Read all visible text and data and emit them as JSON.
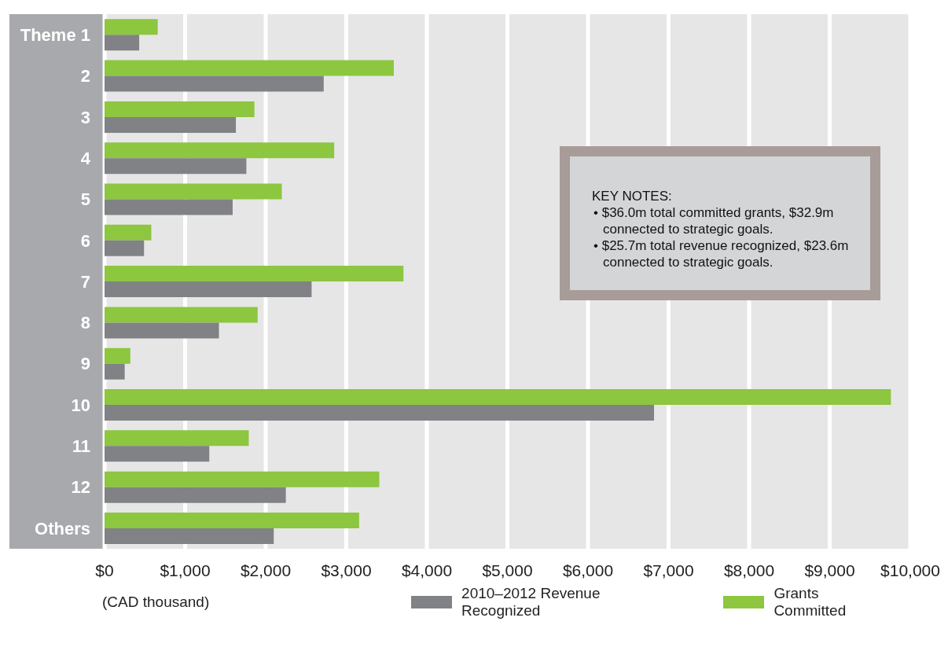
{
  "chart_data": {
    "type": "bar",
    "orientation": "horizontal",
    "xlabel": "(CAD thousand)",
    "categories": [
      "Theme 1",
      "2",
      "3",
      "4",
      "5",
      "6",
      "7",
      "8",
      "9",
      "10",
      "11",
      "12",
      "Others"
    ],
    "series": [
      {
        "name": "Grants Committed",
        "color": "#8dc63f",
        "values": [
          660,
          3590,
          1860,
          2850,
          2200,
          580,
          3710,
          1900,
          320,
          9760,
          1790,
          3410,
          3160
        ]
      },
      {
        "name": "2010–2012 Revenue Recognized",
        "color": "#808285",
        "values": [
          430,
          2720,
          1630,
          1760,
          1590,
          490,
          2570,
          1420,
          250,
          6820,
          1300,
          2250,
          2100
        ]
      }
    ],
    "xlim": [
      0,
      10000
    ],
    "xticks": [
      {
        "value": 0,
        "label": "$0"
      },
      {
        "value": 1000,
        "label": "$1,000"
      },
      {
        "value": 2000,
        "label": "$2,000"
      },
      {
        "value": 3000,
        "label": "$3,000"
      },
      {
        "value": 4000,
        "label": "$4,000"
      },
      {
        "value": 5000,
        "label": "$5,000"
      },
      {
        "value": 6000,
        "label": "$6,000"
      },
      {
        "value": 7000,
        "label": "$7,000"
      },
      {
        "value": 8000,
        "label": "$8,000"
      },
      {
        "value": 9000,
        "label": "$9,000"
      },
      {
        "value": 10000,
        "label": "$10,000"
      }
    ],
    "grid": "x",
    "legend": "bottom",
    "annotations": [
      "KEY NOTES:",
      "• $36.0m total committed grants, $32.9m connected to strategic goals.",
      "• $25.7m total revenue recognized, $23.6m connected to strategic goals."
    ]
  }
}
